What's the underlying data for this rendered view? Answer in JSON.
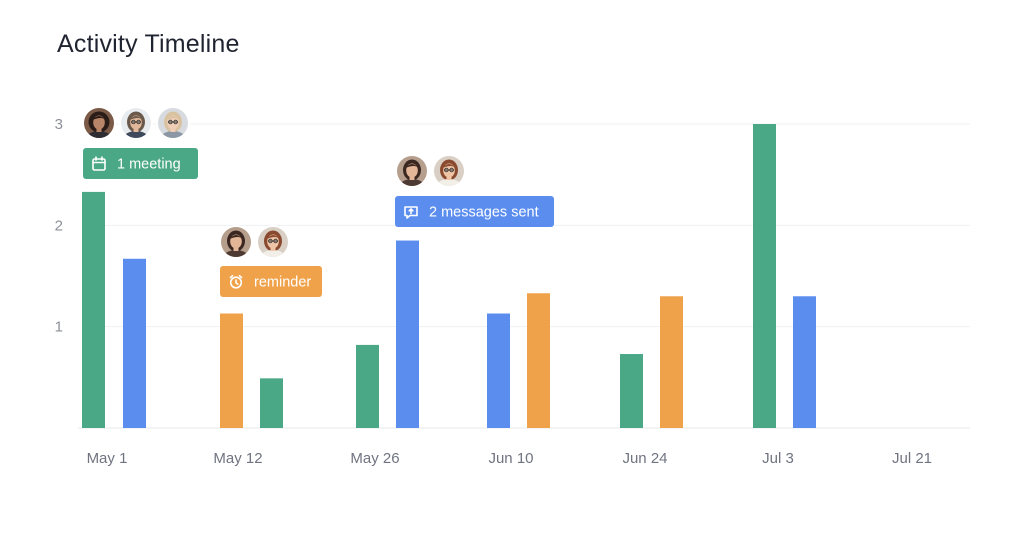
{
  "title": "Activity Timeline",
  "chart_data": {
    "type": "bar",
    "title": "Activity Timeline",
    "xlabel": "",
    "ylabel": "",
    "ylim": [
      0,
      3
    ],
    "yticks": [
      1,
      2,
      3
    ],
    "grid": true,
    "x_ticks": [
      "May 1",
      "May 12",
      "May 26",
      "Jun 10",
      "Jun 24",
      "Jul 3",
      "Jul 21"
    ],
    "colors": {
      "green": "#4aa887",
      "blue": "#5b8def",
      "orange": "#f0a24b"
    },
    "bars": [
      {
        "group": "May 1",
        "color": "green",
        "value": 2.33
      },
      {
        "group": "May 1",
        "color": "blue",
        "value": 1.67
      },
      {
        "group": "May 12",
        "color": "orange",
        "value": 1.13
      },
      {
        "group": "May 12",
        "color": "green",
        "value": 0.49
      },
      {
        "group": "May 26",
        "color": "green",
        "value": 0.82
      },
      {
        "group": "May 26",
        "color": "blue",
        "value": 1.85
      },
      {
        "group": "Jun 10",
        "color": "blue",
        "value": 1.13
      },
      {
        "group": "Jun 10",
        "color": "orange",
        "value": 1.33
      },
      {
        "group": "Jun 24",
        "color": "green",
        "value": 0.73
      },
      {
        "group": "Jun 24",
        "color": "orange",
        "value": 1.3
      },
      {
        "group": "Jul 3",
        "color": "green",
        "value": 3.0
      },
      {
        "group": "Jul 3",
        "color": "blue",
        "value": 1.3
      }
    ],
    "annotations": [
      {
        "bar": 0,
        "text": "1 meeting",
        "color": "green",
        "icon": "calendar-icon",
        "avatars": [
          "avatar-woman-curly",
          "avatar-man-glasses",
          "avatar-woman-blonde"
        ]
      },
      {
        "bar": 2,
        "text": "reminder",
        "color": "orange",
        "icon": "alarm-clock-icon",
        "avatars": [
          "avatar-woman-dark",
          "avatar-woman-auburn"
        ]
      },
      {
        "bar": 5,
        "text": "2 messages sent",
        "color": "blue",
        "icon": "message-icon",
        "avatars": [
          "avatar-woman-dark",
          "avatar-woman-auburn"
        ]
      }
    ]
  }
}
